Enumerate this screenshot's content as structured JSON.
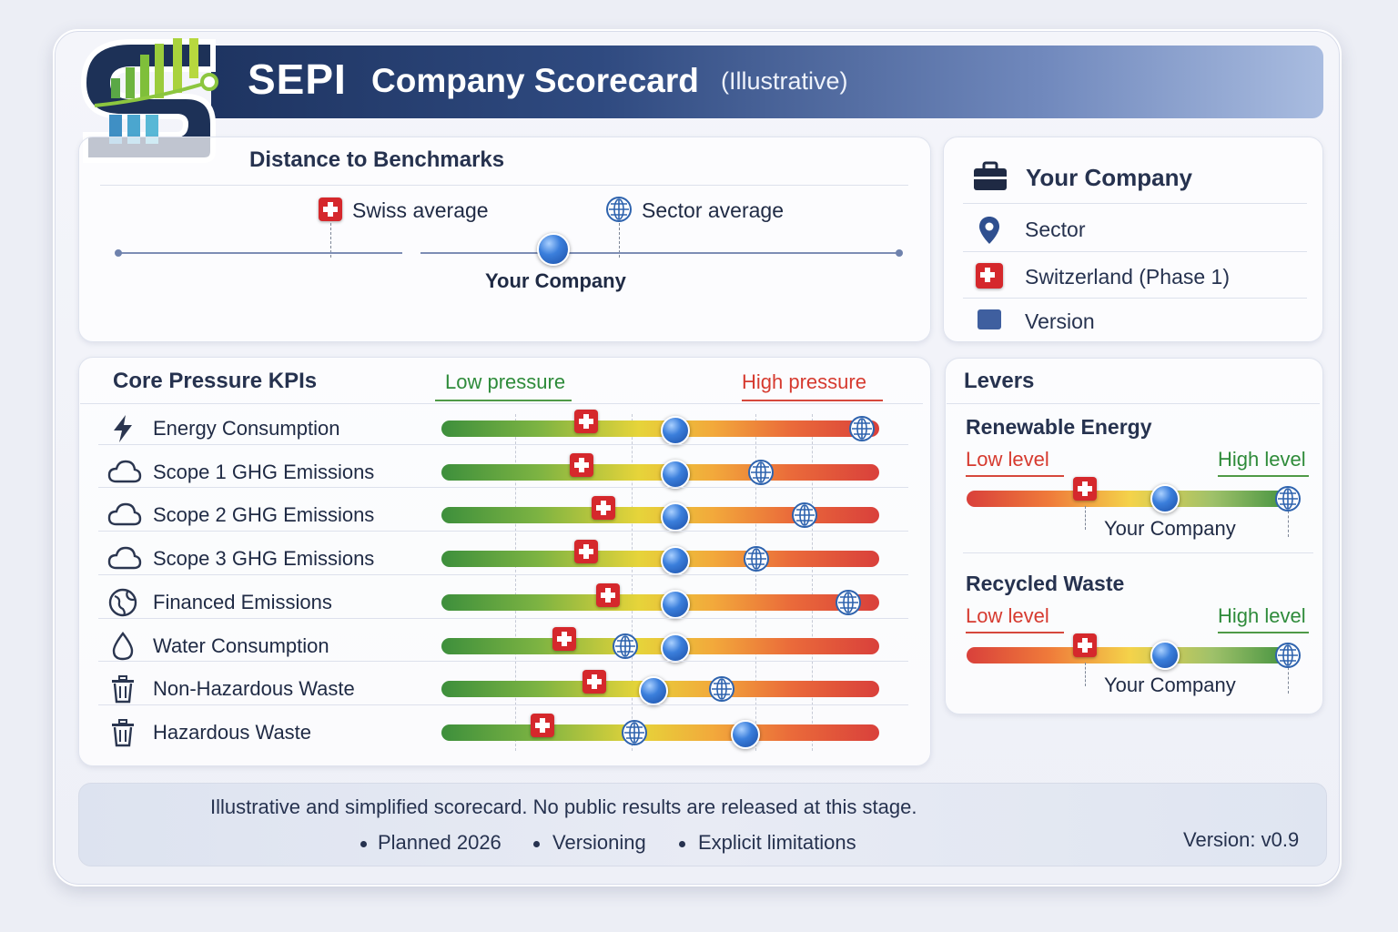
{
  "header": {
    "brand": "SEPI",
    "title": "Company Scorecard",
    "note": "(Illustrative)"
  },
  "colors": {
    "header_dark": "#1e3461",
    "low_pressure": "#2e8b3a",
    "high_pressure": "#d63a2f",
    "swiss_red": "#d5282c",
    "marker_blue": "#2e63ae"
  },
  "benchmarks": {
    "title": "Distance to Benchmarks",
    "swiss_label": "Swiss average",
    "sector_label": "Sector average",
    "company_label": "Your Company"
  },
  "company_info": {
    "title": "Your Company",
    "items": [
      {
        "icon": "location-pin-icon",
        "label": "Sector"
      },
      {
        "icon": "swiss-flag-icon",
        "label": "Switzerland (Phase 1)"
      },
      {
        "icon": "square-icon",
        "label": "Version"
      }
    ]
  },
  "kpis": {
    "title": "Core Pressure KPIs",
    "low_label": "Low pressure",
    "high_label": "High pressure",
    "rows": [
      {
        "icon": "lightning-icon",
        "label": "Energy Consumption",
        "swiss": 0.33,
        "company": 0.53,
        "sector": 0.96
      },
      {
        "icon": "cloud-icon",
        "label": "Scope 1 GHG Emissions",
        "swiss": 0.32,
        "company": 0.53,
        "sector": 0.73
      },
      {
        "icon": "cloud-icon",
        "label": "Scope 2 GHG Emissions",
        "swiss": 0.37,
        "company": 0.53,
        "sector": 0.83
      },
      {
        "icon": "cloud-icon",
        "label": "Scope 3 GHG Emissions",
        "swiss": 0.33,
        "company": 0.53,
        "sector": 0.72
      },
      {
        "icon": "globe-leaf-icon",
        "label": "Financed Emissions",
        "swiss": 0.38,
        "company": 0.53,
        "sector": 0.93
      },
      {
        "icon": "water-drop-icon",
        "label": "Water Consumption",
        "swiss": 0.28,
        "company": 0.53,
        "sector": 0.42
      },
      {
        "icon": "trash-bin-icon",
        "label": "Non-Hazardous Waste",
        "swiss": 0.35,
        "company": 0.48,
        "sector": 0.64
      },
      {
        "icon": "trash-bin-icon",
        "label": "Hazardous Waste",
        "swiss": 0.23,
        "company": 0.69,
        "sector": 0.44
      }
    ]
  },
  "levers": {
    "title": "Levers",
    "items": [
      {
        "title": "Renewable Energy",
        "low": "Low level",
        "high": "High level",
        "company_label": "Your Company",
        "swiss": 0.36,
        "company": 0.6,
        "sector": 0.98
      },
      {
        "title": "Recycled Waste",
        "low": "Low level",
        "high": "High level",
        "company_label": "Your Company",
        "swiss": 0.36,
        "company": 0.6,
        "sector": 0.98
      }
    ]
  },
  "footer": {
    "note": "Illustrative and simplified scorecard. No public results are released at this stage.",
    "bullets": [
      "Planned 2026",
      "Versioning",
      "Explicit limitations"
    ],
    "version": "Version: v0.9"
  }
}
